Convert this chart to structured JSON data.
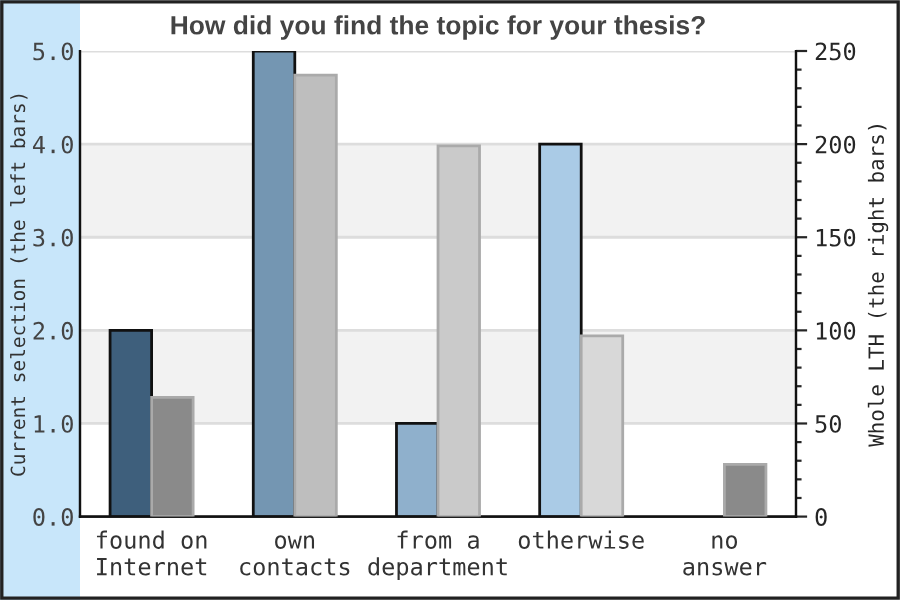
{
  "chart_data": {
    "type": "bar",
    "title": "How did you find the topic for your thesis?",
    "ylabel": "Current selection (the left bars)",
    "y2label": "Whole LTH (the right bars)",
    "categories": [
      "found on\nInternet",
      "own\ncontacts",
      "from a\ndepartment",
      "otherwise",
      "no\nanswer"
    ],
    "series": [
      {
        "values": [
          2,
          5,
          1,
          4,
          null
        ],
        "colors": [
          "#3e5f7c",
          "#7496b2",
          "#8fb0cc",
          "#aacbe6",
          "#aacbe6"
        ]
      },
      {
        "values": [
          64,
          237,
          199,
          97,
          28
        ],
        "colors": [
          "#8a8a8a",
          "#bebebe",
          "#cacaca",
          "#d8d8d8",
          "#8a8a8a"
        ],
        "axis": "y2"
      }
    ],
    "ylim": [
      0,
      5
    ],
    "yticks": [
      {
        "value": 0,
        "label": "0.0"
      },
      {
        "value": 1,
        "label": "1.0"
      },
      {
        "value": 2,
        "label": "2.0"
      },
      {
        "value": 3,
        "label": "3.0"
      },
      {
        "value": 4,
        "label": "4.0"
      },
      {
        "value": 5,
        "label": "5.0"
      }
    ],
    "y2lim": [
      0,
      250
    ],
    "y2ticks": [
      0,
      {
        "value": 10,
        "label": null
      },
      {
        "value": 20,
        "label": null
      },
      {
        "value": 30,
        "label": null
      },
      {
        "value": 40,
        "label": null
      },
      50,
      {
        "value": 60,
        "label": null
      },
      {
        "value": 70,
        "label": null
      },
      {
        "value": 80,
        "label": null
      },
      {
        "value": 90,
        "label": null
      },
      100,
      {
        "value": 110,
        "label": null
      },
      {
        "value": 120,
        "label": null
      },
      {
        "value": 130,
        "label": null
      },
      {
        "value": 140,
        "label": null
      },
      150,
      {
        "value": 160,
        "label": null
      },
      {
        "value": 170,
        "label": null
      },
      {
        "value": 180,
        "label": null
      },
      {
        "value": 190,
        "label": null
      },
      200,
      {
        "value": 210,
        "label": null
      },
      {
        "value": 220,
        "label": null
      },
      {
        "value": 230,
        "label": null
      },
      {
        "value": 240,
        "label": null
      },
      250
    ],
    "bands": [
      {
        "axis": "y",
        "from": 1,
        "to": 2,
        "color": "#f2f2f2"
      },
      {
        "axis": "y",
        "from": 3,
        "to": 4,
        "color": "#f2f2f2"
      }
    ],
    "grid": "y",
    "legend": false
  }
}
